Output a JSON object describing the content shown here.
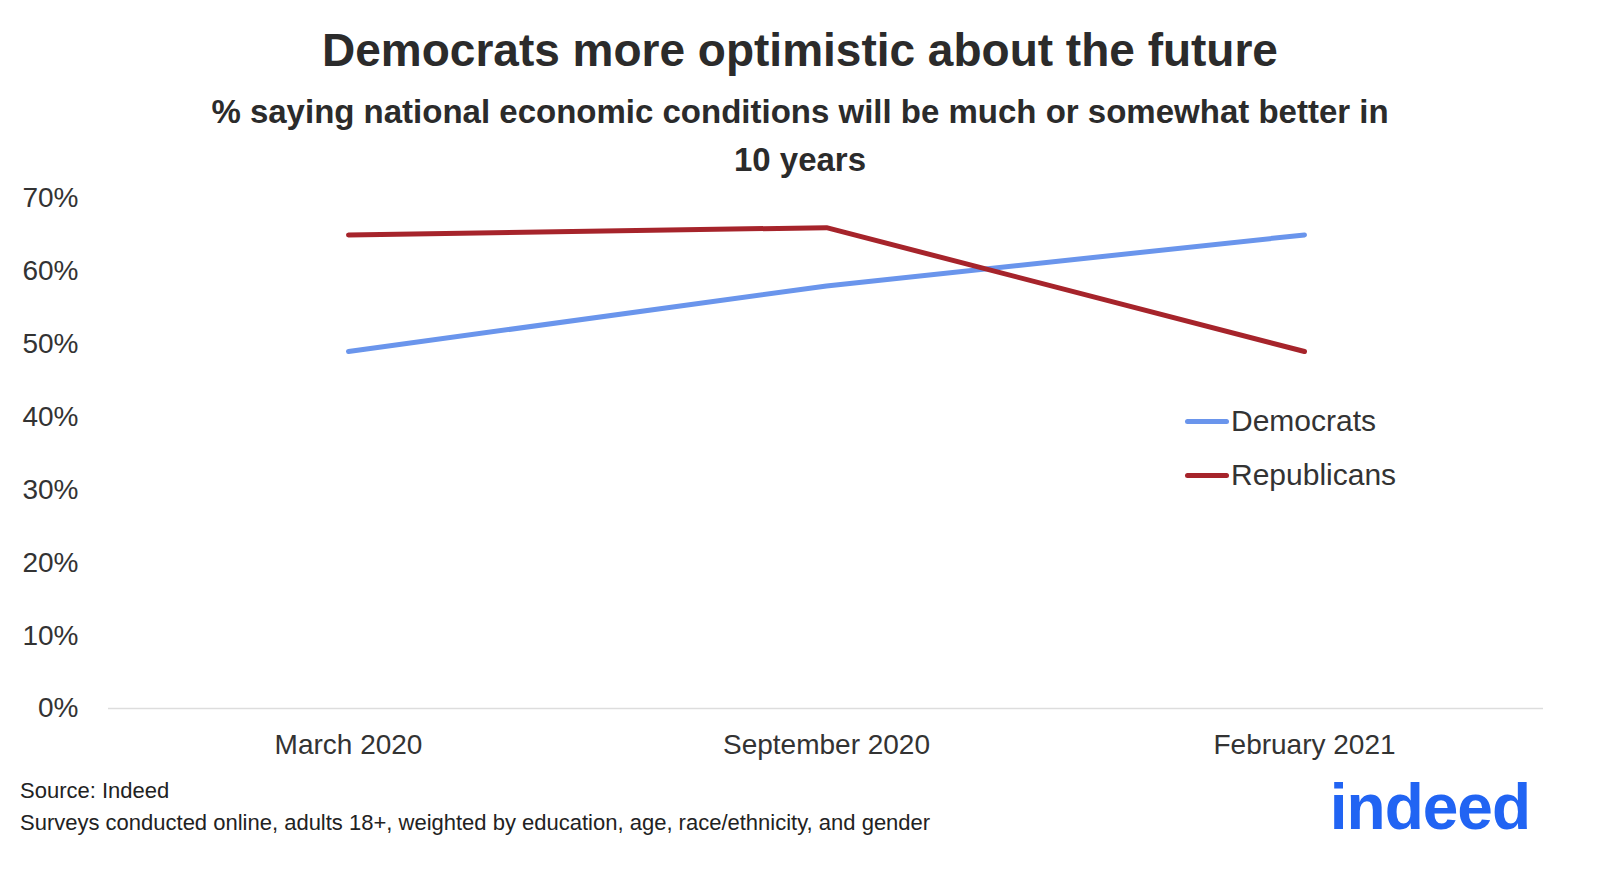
{
  "chart_data": {
    "type": "line",
    "title": "Democrats more optimistic about the future",
    "subtitle": "% saying national economic conditions will be much or somewhat better in 10 years",
    "categories": [
      "March 2020",
      "September 2020",
      "February 2021"
    ],
    "series": [
      {
        "name": "Democrats",
        "color": "#6a95ec",
        "values": [
          49,
          58,
          65
        ]
      },
      {
        "name": "Republicans",
        "color": "#a6242b",
        "values": [
          65,
          66,
          49
        ]
      }
    ],
    "ylim": [
      0,
      70
    ],
    "yticks": [
      {
        "value": 0,
        "label": "0%"
      },
      {
        "value": 10,
        "label": "10%"
      },
      {
        "value": 20,
        "label": "20%"
      },
      {
        "value": 30,
        "label": "30%"
      },
      {
        "value": 40,
        "label": "40%"
      },
      {
        "value": 50,
        "label": "50%"
      },
      {
        "value": 60,
        "label": "60%"
      },
      {
        "value": 70,
        "label": "70%"
      }
    ],
    "grid": false,
    "legend": "right",
    "source": "Source: Indeed",
    "note": "Surveys conducted online, adults 18+, weighted by education, age, race/ethnicity, and gender",
    "logo": "indeed"
  }
}
